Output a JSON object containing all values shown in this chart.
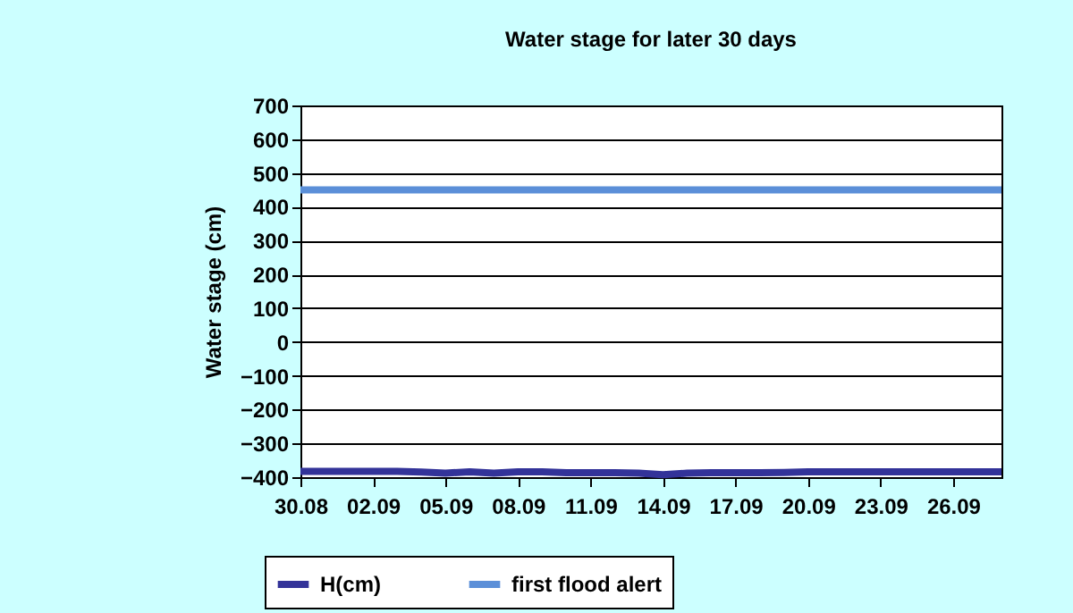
{
  "chart_data": {
    "type": "line",
    "title": "Water stage for later 30 days",
    "ylabel": "Water stage (cm)",
    "x": [
      "--08-30",
      "--08-31",
      "--09-01",
      "--09-02",
      "--09-03",
      "--09-04",
      "--09-05",
      "--09-06",
      "--09-07",
      "--09-08",
      "--09-09",
      "--09-10",
      "--09-11",
      "--09-12",
      "--09-13",
      "--09-14",
      "--09-15",
      "--09-16",
      "--09-17",
      "--09-18",
      "--09-19",
      "--09-20",
      "--09-21",
      "--09-22",
      "--09-23",
      "--09-24",
      "--09-25",
      "--09-26",
      "--09-27",
      "--09-28"
    ],
    "series": [
      {
        "name": "H(cm)",
        "color": "#333399",
        "values": [
          -383,
          -383,
          -383,
          -383,
          -383,
          -385,
          -388,
          -384,
          -388,
          -384,
          -384,
          -387,
          -387,
          -387,
          -388,
          -393,
          -388,
          -387,
          -387,
          -387,
          -386,
          -384,
          -384,
          -384,
          -384,
          -384,
          -384,
          -384,
          -384,
          -384
        ]
      },
      {
        "name": "first flood alert",
        "color": "#5b8fd8",
        "values": [
          450,
          450,
          450,
          450,
          450,
          450,
          450,
          450,
          450,
          450,
          450,
          450,
          450,
          450,
          450,
          450,
          450,
          450,
          450,
          450,
          450,
          450,
          450,
          450,
          450,
          450,
          450,
          450,
          450,
          450
        ]
      }
    ],
    "xlim": [
      "--08-30",
      "--09-28"
    ],
    "xticks": [
      {
        "value": "--08-30",
        "label": "30.08"
      },
      {
        "value": "--09-02",
        "label": "02.09"
      },
      {
        "value": "--09-05",
        "label": "05.09"
      },
      {
        "value": "--09-08",
        "label": "08.09"
      },
      {
        "value": "--09-11",
        "label": "11.09"
      },
      {
        "value": "--09-14",
        "label": "14.09"
      },
      {
        "value": "--09-17",
        "label": "17.09"
      },
      {
        "value": "--09-20",
        "label": "20.09"
      },
      {
        "value": "--09-23",
        "label": "23.09"
      },
      {
        "value": "--09-26",
        "label": "26.09"
      }
    ],
    "ylim": [
      -400,
      700
    ],
    "yticks": [
      -400,
      -300,
      -200,
      -100,
      0,
      100,
      200,
      300,
      400,
      500,
      600,
      700
    ],
    "grid": "y",
    "legend": "bottom",
    "marker": "none",
    "line_style": "solid"
  }
}
